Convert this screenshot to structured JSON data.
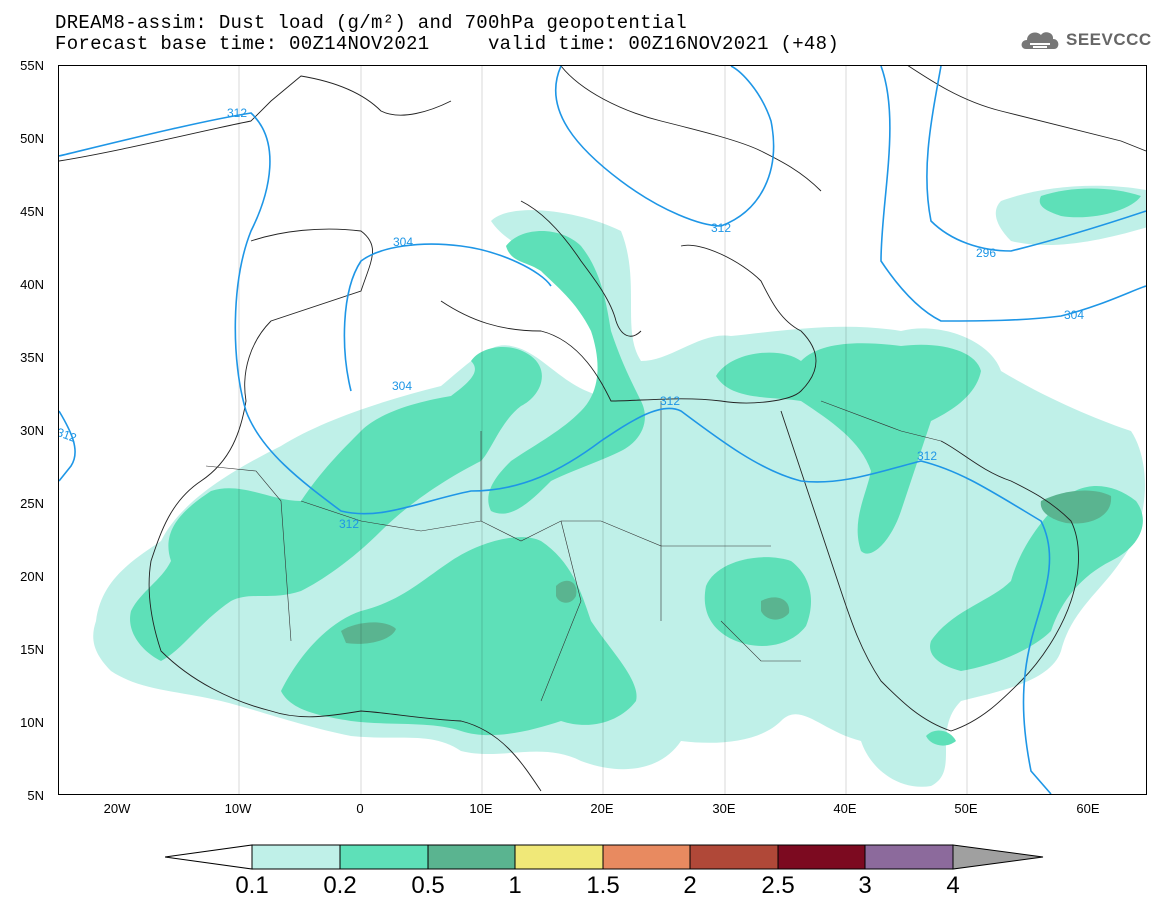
{
  "title": {
    "line1": "DREAM8-assim: Dust load (g/m²) and 700hPa geopotential",
    "line2": "Forecast base time: 00Z14NOV2021     valid time: 00Z16NOV2021 (+48)"
  },
  "logo": {
    "text": "SEEVCCC",
    "icon": "cloud-icon"
  },
  "map": {
    "lat_ticks": [
      "55N",
      "50N",
      "45N",
      "40N",
      "35N",
      "30N",
      "25N",
      "20N",
      "15N",
      "10N",
      "5N"
    ],
    "lon_ticks": [
      "20W",
      "10W",
      "0",
      "10E",
      "20E",
      "30E",
      "40E",
      "50E",
      "60E"
    ],
    "contour_labels": [
      "312",
      "312",
      "304",
      "304",
      "312",
      "312",
      "312",
      "312",
      "296",
      "304"
    ]
  },
  "colorbar": {
    "labels": [
      "0.1",
      "0.2",
      "0.5",
      "1",
      "1.5",
      "2",
      "2.5",
      "3",
      "4"
    ],
    "colors": [
      "#ffffff",
      "#bff0e8",
      "#5ee0b8",
      "#5ab490",
      "#f0e878",
      "#e88a60",
      "#b04838",
      "#7c0a20",
      "#8c6a9c",
      "#a0a0a0"
    ]
  },
  "colors": {
    "dust_low": "#bff0e8",
    "dust_mid": "#5ee0b8",
    "dust_high": "#5ab490",
    "contour": "#1e96e6"
  }
}
